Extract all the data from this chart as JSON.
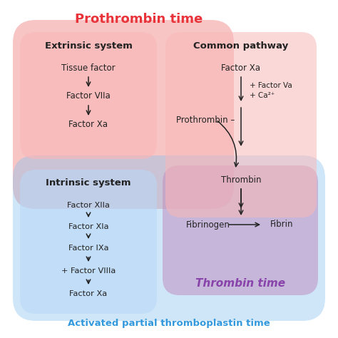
{
  "bg_color": "#ffffff",
  "prothrombin_label": "Prothrombin time",
  "prothrombin_color": "#e8333a",
  "aptt_label": "Activated partial thromboplastin time",
  "aptt_color": "#3399dd",
  "thrombin_label": "Thrombin time",
  "thrombin_color": "#8844aa",
  "extrinsic_title": "Extrinsic system",
  "extrinsic_steps": [
    "Tissue factor",
    "Factor VIIa",
    "Factor Xa"
  ],
  "common_title": "Common pathway",
  "intrinsic_title": "Intrinsic system",
  "intrinsic_steps": [
    "Factor XIIa",
    "Factor XIa",
    "Factor IXa",
    "+ Factor VIIIa",
    "Factor Xa"
  ],
  "red_fill": "#f08080",
  "blue_fill": "#87bfef",
  "purple_fill": "#c090c0",
  "inner_red_fill": "#f9b8b8",
  "inner_blue_fill": "#b8d8f8"
}
